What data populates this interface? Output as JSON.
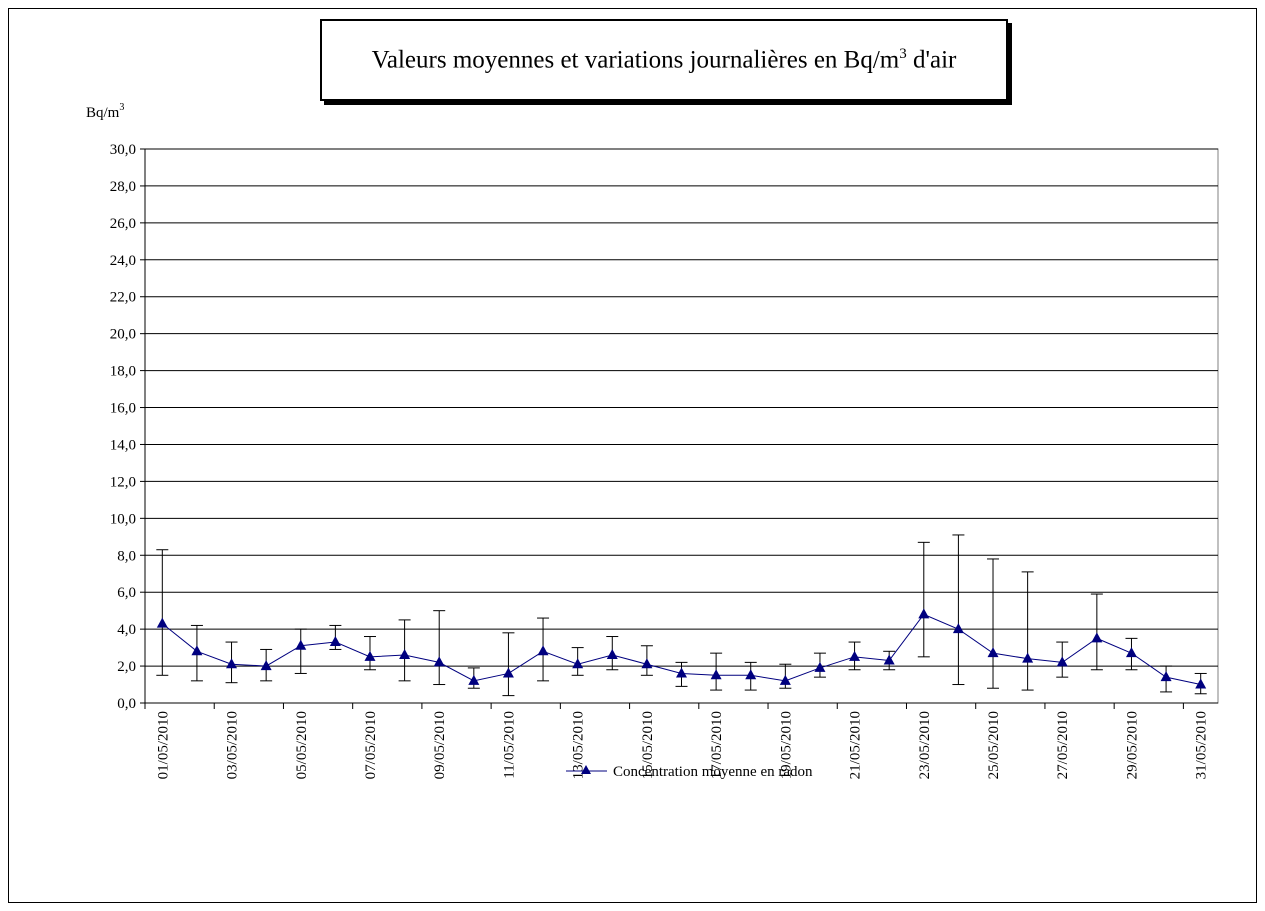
{
  "chart_data": {
    "type": "line",
    "title_parts": {
      "main": "Valeurs moyennes et variations journalières en Bq/m",
      "sup": "3",
      "tail": " d'air"
    },
    "ylabel_parts": {
      "main": "Bq/m",
      "sup": "3"
    },
    "ylim": [
      0,
      30
    ],
    "yticks": [
      "0,0",
      "2,0",
      "4,0",
      "6,0",
      "8,0",
      "10,0",
      "12,0",
      "14,0",
      "16,0",
      "18,0",
      "20,0",
      "22,0",
      "24,0",
      "26,0",
      "28,0",
      "30,0"
    ],
    "x": [
      "01/05/2010",
      "02/05/2010",
      "03/05/2010",
      "04/05/2010",
      "05/05/2010",
      "06/05/2010",
      "07/05/2010",
      "08/05/2010",
      "09/05/2010",
      "10/05/2010",
      "11/05/2010",
      "12/05/2010",
      "13/05/2010",
      "14/05/2010",
      "15/05/2010",
      "16/05/2010",
      "17/05/2010",
      "18/05/2010",
      "19/05/2010",
      "20/05/2010",
      "21/05/2010",
      "22/05/2010",
      "23/05/2010",
      "24/05/2010",
      "25/05/2010",
      "26/05/2010",
      "27/05/2010",
      "28/05/2010",
      "29/05/2010",
      "30/05/2010",
      "31/05/2010"
    ],
    "xtick_labels": [
      "01/05/2010",
      "03/05/2010",
      "05/05/2010",
      "07/05/2010",
      "09/05/2010",
      "11/05/2010",
      "13/05/2010",
      "15/05/2010",
      "17/05/2010",
      "19/05/2010",
      "21/05/2010",
      "23/05/2010",
      "25/05/2010",
      "27/05/2010",
      "29/05/2010",
      "31/05/2010"
    ],
    "series": [
      {
        "name": "Concentration moyenne en radon",
        "color": "#00007f",
        "marker": "triangle",
        "values": [
          4.3,
          2.8,
          2.1,
          2.0,
          3.1,
          3.3,
          2.5,
          2.6,
          2.2,
          1.2,
          1.6,
          2.8,
          2.1,
          2.6,
          2.1,
          1.6,
          1.5,
          1.5,
          1.2,
          1.9,
          2.5,
          2.3,
          4.8,
          4.0,
          2.7,
          2.4,
          2.2,
          3.5,
          2.7,
          1.4,
          1.0
        ],
        "err_min": [
          1.5,
          1.2,
          1.1,
          1.2,
          1.6,
          2.9,
          1.8,
          1.2,
          1.0,
          0.8,
          0.4,
          1.2,
          1.5,
          1.8,
          1.5,
          0.9,
          0.7,
          0.7,
          0.8,
          1.4,
          1.8,
          1.8,
          2.5,
          1.0,
          0.8,
          0.7,
          1.4,
          1.8,
          1.8,
          0.6,
          0.5
        ],
        "err_max": [
          8.3,
          4.2,
          3.3,
          2.9,
          4.0,
          4.2,
          3.6,
          4.5,
          5.0,
          1.9,
          3.8,
          4.6,
          3.0,
          3.6,
          3.1,
          2.2,
          2.7,
          2.2,
          2.1,
          2.7,
          3.3,
          2.8,
          8.7,
          9.1,
          7.8,
          7.1,
          3.3,
          5.9,
          3.5,
          2.0,
          1.6
        ]
      }
    ],
    "grid": "horizontal",
    "legend_position": "bottom"
  }
}
